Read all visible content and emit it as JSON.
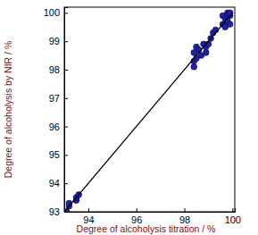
{
  "chart_data": {
    "type": "scatter",
    "xlabel": "Degree of alcoholysis titration / %",
    "ylabel": "Degree of alcoholysis by NIR / %",
    "xlim": [
      93,
      100.1
    ],
    "ylim": [
      93,
      100.2
    ],
    "xticks": [
      94,
      96,
      98,
      100
    ],
    "yticks": [
      93,
      94,
      95,
      96,
      97,
      98,
      99,
      100
    ],
    "grid": false,
    "series": [
      {
        "type": "scatter",
        "color": "#2222a8",
        "marker": "circle",
        "x": [
          93.1,
          93.2,
          93.2,
          93.5,
          93.5,
          93.6,
          98.4,
          98.4,
          98.4,
          98.5,
          98.5,
          98.6,
          98.7,
          98.8,
          98.9,
          98.9,
          99.0,
          99.1,
          99.2,
          99.3,
          99.6,
          99.6,
          99.7,
          99.7,
          99.8,
          99.8,
          99.8,
          99.9,
          99.9,
          99.9
        ],
        "values": [
          93.0,
          93.2,
          93.3,
          93.4,
          93.5,
          93.6,
          98.1,
          98.3,
          98.6,
          98.4,
          98.8,
          98.7,
          98.5,
          98.9,
          98.8,
          98.6,
          98.9,
          99.1,
          99.3,
          99.4,
          99.9,
          99.6,
          99.8,
          99.5,
          100.0,
          99.7,
          99.9,
          99.6,
          99.9,
          100.0
        ]
      },
      {
        "type": "line",
        "color": "#000000",
        "line_style": "solid",
        "x": [
          93,
          100
        ],
        "values": [
          93,
          100
        ]
      }
    ]
  }
}
